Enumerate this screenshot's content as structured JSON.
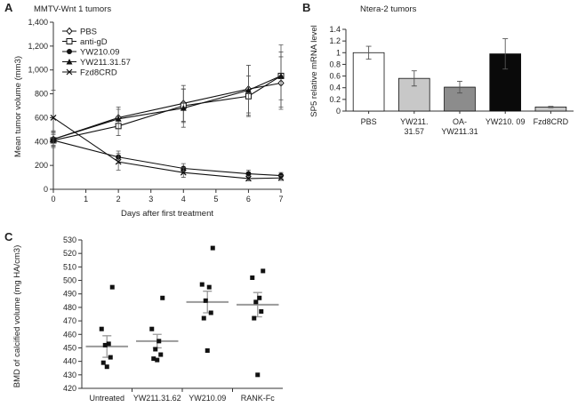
{
  "chart_data": [
    {
      "panel": "A",
      "type": "line",
      "title": "MMTV-Wnt 1 tumors",
      "xlabel": "Days after first treatment",
      "ylabel": "Mean tumor volume (mm3)",
      "xlim": [
        0,
        7
      ],
      "ylim": [
        0,
        1400
      ],
      "xticks": [
        "0",
        "1",
        "2",
        "3",
        "4",
        "5",
        "6",
        "7"
      ],
      "yticks": [
        "0",
        "200",
        "400",
        "600",
        "800",
        "1,000",
        "1,200",
        "1,400"
      ],
      "x": [
        0,
        2,
        4,
        6,
        7
      ],
      "series": [
        {
          "name": "PBS",
          "marker": "diamond",
          "values": [
            420,
            600,
            720,
            840,
            890
          ],
          "err": [
            60,
            90,
            150,
            200,
            220
          ]
        },
        {
          "name": "anti-gD",
          "marker": "square",
          "values": [
            410,
            530,
            700,
            780,
            950
          ],
          "err": [
            60,
            80,
            140,
            170,
            200
          ]
        },
        {
          "name": "YW210.09",
          "marker": "circle",
          "values": [
            410,
            270,
            175,
            130,
            115
          ],
          "err": [
            50,
            50,
            40,
            30,
            25
          ]
        },
        {
          "name": "YW211.31.57",
          "marker": "triangle",
          "values": [
            420,
            590,
            680,
            830,
            950
          ],
          "err": [
            70,
            80,
            160,
            210,
            260
          ]
        },
        {
          "name": "Fzd8CRD",
          "marker": "x",
          "values": [
            600,
            230,
            140,
            90,
            95
          ],
          "err": [
            230,
            70,
            40,
            20,
            20
          ]
        }
      ]
    },
    {
      "panel": "B",
      "type": "bar",
      "title": "Ntera-2 tumors",
      "ylabel": "SP5 relative mRNA level",
      "ylim": [
        0,
        1.4
      ],
      "yticks": [
        "0",
        "0.2",
        "0.4",
        "0.6",
        "0.8",
        "1",
        "1.2",
        "1.4"
      ],
      "categories": [
        [
          "PBS"
        ],
        [
          "YW211.",
          "31.57"
        ],
        [
          "OA-",
          "YW211.31"
        ],
        [
          "YW210. 09"
        ],
        [
          "Fzd8CRD"
        ]
      ],
      "values": [
        1.0,
        0.56,
        0.41,
        0.98,
        0.07
      ],
      "err": [
        0.11,
        0.13,
        0.1,
        0.26,
        0.01
      ],
      "colors": [
        "#ffffff",
        "#c8c8c8",
        "#8c8c8c",
        "#0a0a0a",
        "#c8c8c8"
      ]
    },
    {
      "panel": "C",
      "type": "scatter",
      "ylabel": "BMD of calcified volume (mg HA/cm3)",
      "ylim": [
        420,
        530
      ],
      "yticks": [
        "420",
        "430",
        "440",
        "450",
        "460",
        "470",
        "480",
        "490",
        "500",
        "510",
        "520",
        "530"
      ],
      "categories": [
        "Untreated",
        "YW211.31.62",
        "YW210.09",
        "RANK-Fc"
      ],
      "points": [
        [
          495,
          464,
          453,
          452,
          443,
          439,
          436
        ],
        [
          487,
          464,
          455,
          449,
          445,
          442,
          441
        ],
        [
          524,
          497,
          495,
          485,
          476,
          472,
          448
        ],
        [
          507,
          502,
          487,
          484,
          477,
          472,
          430
        ]
      ],
      "means": [
        451,
        455,
        484,
        482
      ],
      "err": [
        8,
        5,
        8,
        9
      ]
    }
  ]
}
